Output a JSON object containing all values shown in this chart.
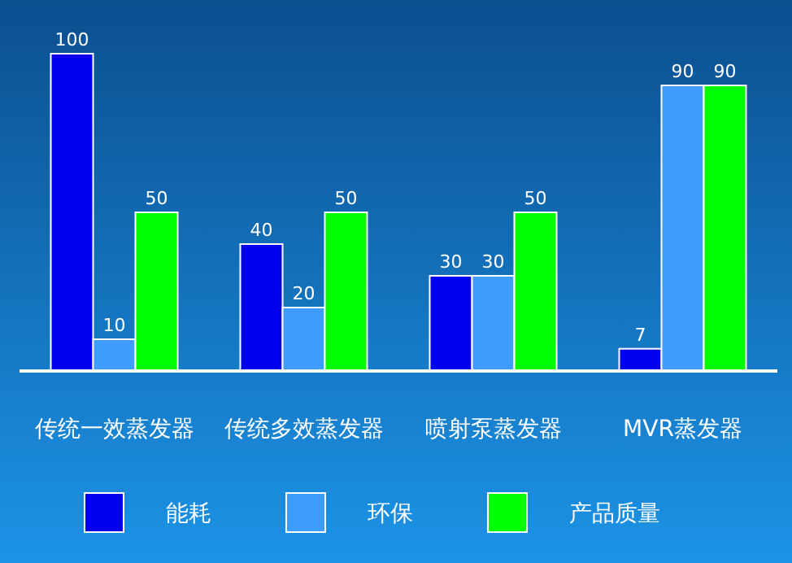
{
  "chart_data": {
    "type": "bar",
    "categories": [
      "传统一效蒸发器",
      "传统多效蒸发器",
      "喷射泵蒸发器",
      "MVR蒸发器"
    ],
    "series": [
      {
        "name": "能耗",
        "color": "#0000ee",
        "values": [
          100,
          40,
          30,
          7
        ]
      },
      {
        "name": "环保",
        "color": "#3f9cff",
        "values": [
          10,
          20,
          30,
          90
        ]
      },
      {
        "name": "产品质量",
        "color": "#00ff00",
        "values": [
          50,
          50,
          50,
          90
        ]
      }
    ],
    "data_labels": true,
    "legend": "bottom"
  }
}
